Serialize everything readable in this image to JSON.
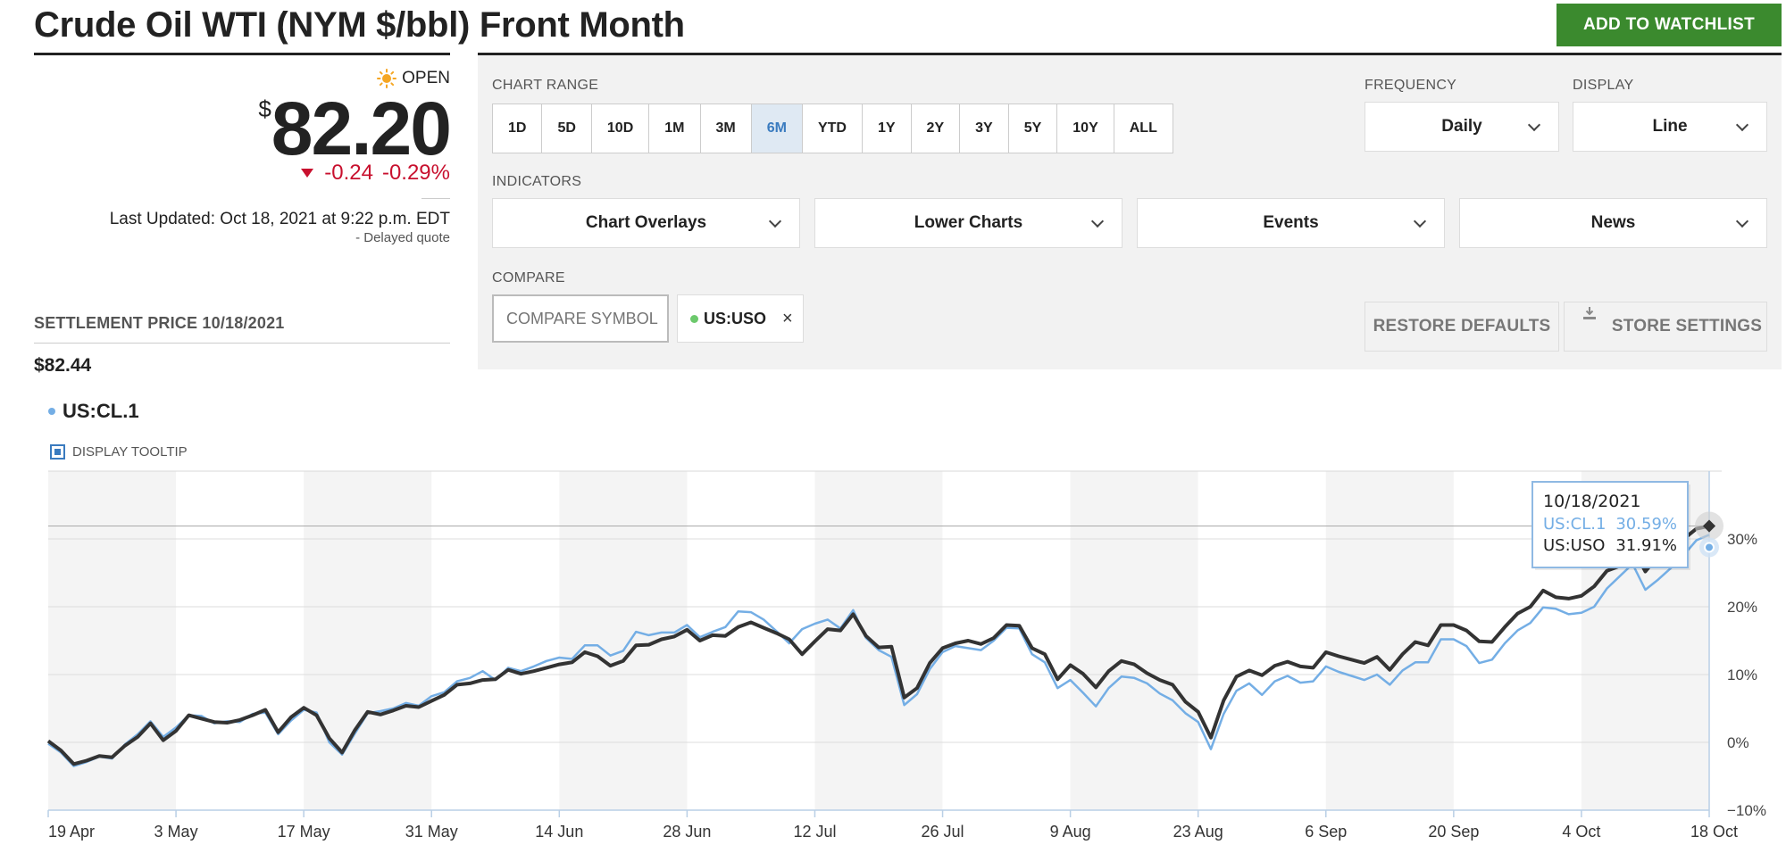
{
  "header": {
    "title": "Crude Oil WTI (NYM $/bbl) Front Month",
    "watchlist_label": "ADD TO  WATCHLIST"
  },
  "quote": {
    "status": "OPEN",
    "currency": "$",
    "price": "82.20",
    "change": "-0.24",
    "change_pct": "-0.29%",
    "last_updated": "Last Updated: Oct 18, 2021 at 9:22 p.m. EDT",
    "delayed": "-  Delayed quote",
    "settlement_label": "SETTLEMENT PRICE 10/18/2021",
    "settlement_value": "$82.44"
  },
  "controls": {
    "chart_range_label": "CHART RANGE",
    "ranges": [
      "1D",
      "5D",
      "10D",
      "1M",
      "3M",
      "6M",
      "YTD",
      "1Y",
      "2Y",
      "3Y",
      "5Y",
      "10Y",
      "ALL"
    ],
    "active_range": "6M",
    "frequency_label": "FREQUENCY",
    "frequency_value": "Daily",
    "display_label": "DISPLAY",
    "display_value": "Line",
    "indicators_label": "INDICATORS",
    "indicators": [
      "Chart Overlays",
      "Lower Charts",
      "Events",
      "News"
    ],
    "compare_label": "COMPARE",
    "compare_placeholder": "COMPARE SYMBOL",
    "compare_chip": "US:USO",
    "compare_chip_close": "×",
    "restore_label": "RESTORE DEFAULTS",
    "store_label": "STORE SETTINGS"
  },
  "legend": {
    "series_label": "US:CL.1",
    "tooltip_label": "DISPLAY TOOLTIP"
  },
  "colors": {
    "cl": "#74aee5",
    "uso": "#333333",
    "accent_green": "#3b8a2e",
    "negative": "#c8102e"
  },
  "chart_data": {
    "type": "line",
    "y_unit": "%",
    "ylim": [
      -10,
      40
    ],
    "y_ticks": [
      {
        "value": 30,
        "label": "30%"
      },
      {
        "value": 20,
        "label": "20%"
      },
      {
        "value": 10,
        "label": "10%"
      },
      {
        "value": 0,
        "label": "0%"
      },
      {
        "value": -10,
        "label": "−10%"
      }
    ],
    "x_ticks": [
      "19 Apr",
      "3 May",
      "17 May",
      "31 May",
      "14 Jun",
      "28 Jun",
      "12 Jul",
      "26 Jul",
      "9 Aug",
      "23 Aug",
      "6 Sep",
      "20 Sep",
      "4 Oct",
      "18 Oct"
    ],
    "n_points": 131,
    "series": [
      {
        "name": "US:USO",
        "values": [
          0.2,
          -1.2,
          -3.2,
          -2.7,
          -2.0,
          -2.2,
          -0.5,
          0.8,
          2.8,
          0.3,
          1.7,
          4.0,
          3.5,
          3.0,
          2.9,
          3.3,
          4.0,
          4.8,
          1.5,
          3.7,
          5.1,
          4.0,
          0.6,
          -1.5,
          1.8,
          4.5,
          4.1,
          4.7,
          5.4,
          5.2,
          6.1,
          7.0,
          8.5,
          8.7,
          9.2,
          9.3,
          10.7,
          10.1,
          10.5,
          11.0,
          11.5,
          11.8,
          13.3,
          12.7,
          11.3,
          12.0,
          14.3,
          14.4,
          15.2,
          15.6,
          16.6,
          15.0,
          15.8,
          15.7,
          17.0,
          17.7,
          16.9,
          16.1,
          15.2,
          13.0,
          14.9,
          16.7,
          16.5,
          18.9,
          15.7,
          14.0,
          14.1,
          6.6,
          8.0,
          11.7,
          13.9,
          14.6,
          15.0,
          14.5,
          15.4,
          17.3,
          17.2,
          13.9,
          13.0,
          9.3,
          11.4,
          10.1,
          8.1,
          10.5,
          12.0,
          11.5,
          10.2,
          9.2,
          8.5,
          6.0,
          4.5,
          0.7,
          6.2,
          9.7,
          10.6,
          9.9,
          11.3,
          11.9,
          11.2,
          11.0,
          13.3,
          12.7,
          12.2,
          11.7,
          12.6,
          10.7,
          13.0,
          14.8,
          14.3,
          17.3,
          17.3,
          16.5,
          14.9,
          14.8,
          17.0,
          19.0,
          20.0,
          22.4,
          21.4,
          21.2,
          21.6,
          23.0,
          25.3,
          26.0,
          28.7,
          25.2,
          27.5,
          28.2,
          30.0,
          31.5,
          31.9
        ]
      },
      {
        "name": "US:CL.1",
        "values": [
          -0.2,
          -1.5,
          -3.5,
          -2.9,
          -2.1,
          -2.4,
          -0.3,
          1.2,
          3.1,
          0.8,
          2.2,
          4.0,
          3.9,
          2.8,
          3.1,
          3.0,
          4.2,
          4.4,
          1.2,
          3.2,
          4.8,
          4.4,
          0.0,
          -1.8,
          1.3,
          4.3,
          4.6,
          5.0,
          5.8,
          5.4,
          6.8,
          7.4,
          9.0,
          9.5,
          10.5,
          9.2,
          11.0,
          10.5,
          11.2,
          12.0,
          12.5,
          12.3,
          14.3,
          14.3,
          12.8,
          13.5,
          16.3,
          15.8,
          16.2,
          16.2,
          17.3,
          15.5,
          16.3,
          17.0,
          19.3,
          19.2,
          18.1,
          16.4,
          14.6,
          16.7,
          17.5,
          18.1,
          16.8,
          19.5,
          15.4,
          13.6,
          12.6,
          5.5,
          7.1,
          10.8,
          13.3,
          14.2,
          13.9,
          13.6,
          15.0,
          16.9,
          16.8,
          13.0,
          11.8,
          8.0,
          9.2,
          7.3,
          5.3,
          8.0,
          9.7,
          9.5,
          8.7,
          7.2,
          6.2,
          4.3,
          3.0,
          -1.0,
          4.2,
          7.6,
          8.7,
          7.0,
          9.0,
          9.8,
          8.8,
          9.0,
          11.2,
          10.4,
          9.8,
          9.2,
          10.0,
          8.5,
          10.6,
          11.8,
          11.8,
          15.2,
          15.2,
          14.2,
          11.7,
          12.2,
          14.6,
          16.5,
          17.6,
          19.9,
          19.7,
          18.9,
          19.1,
          20.0,
          22.7,
          24.5,
          26.3,
          22.5,
          24.0,
          25.7,
          27.6,
          29.8,
          30.6
        ]
      }
    ],
    "tooltip": {
      "date": "10/18/2021",
      "rows": [
        {
          "series": "US:CL.1",
          "value": "30.59%"
        },
        {
          "series": "US:USO",
          "value": "31.91%"
        }
      ]
    },
    "grid": true,
    "legend": "top-left"
  }
}
